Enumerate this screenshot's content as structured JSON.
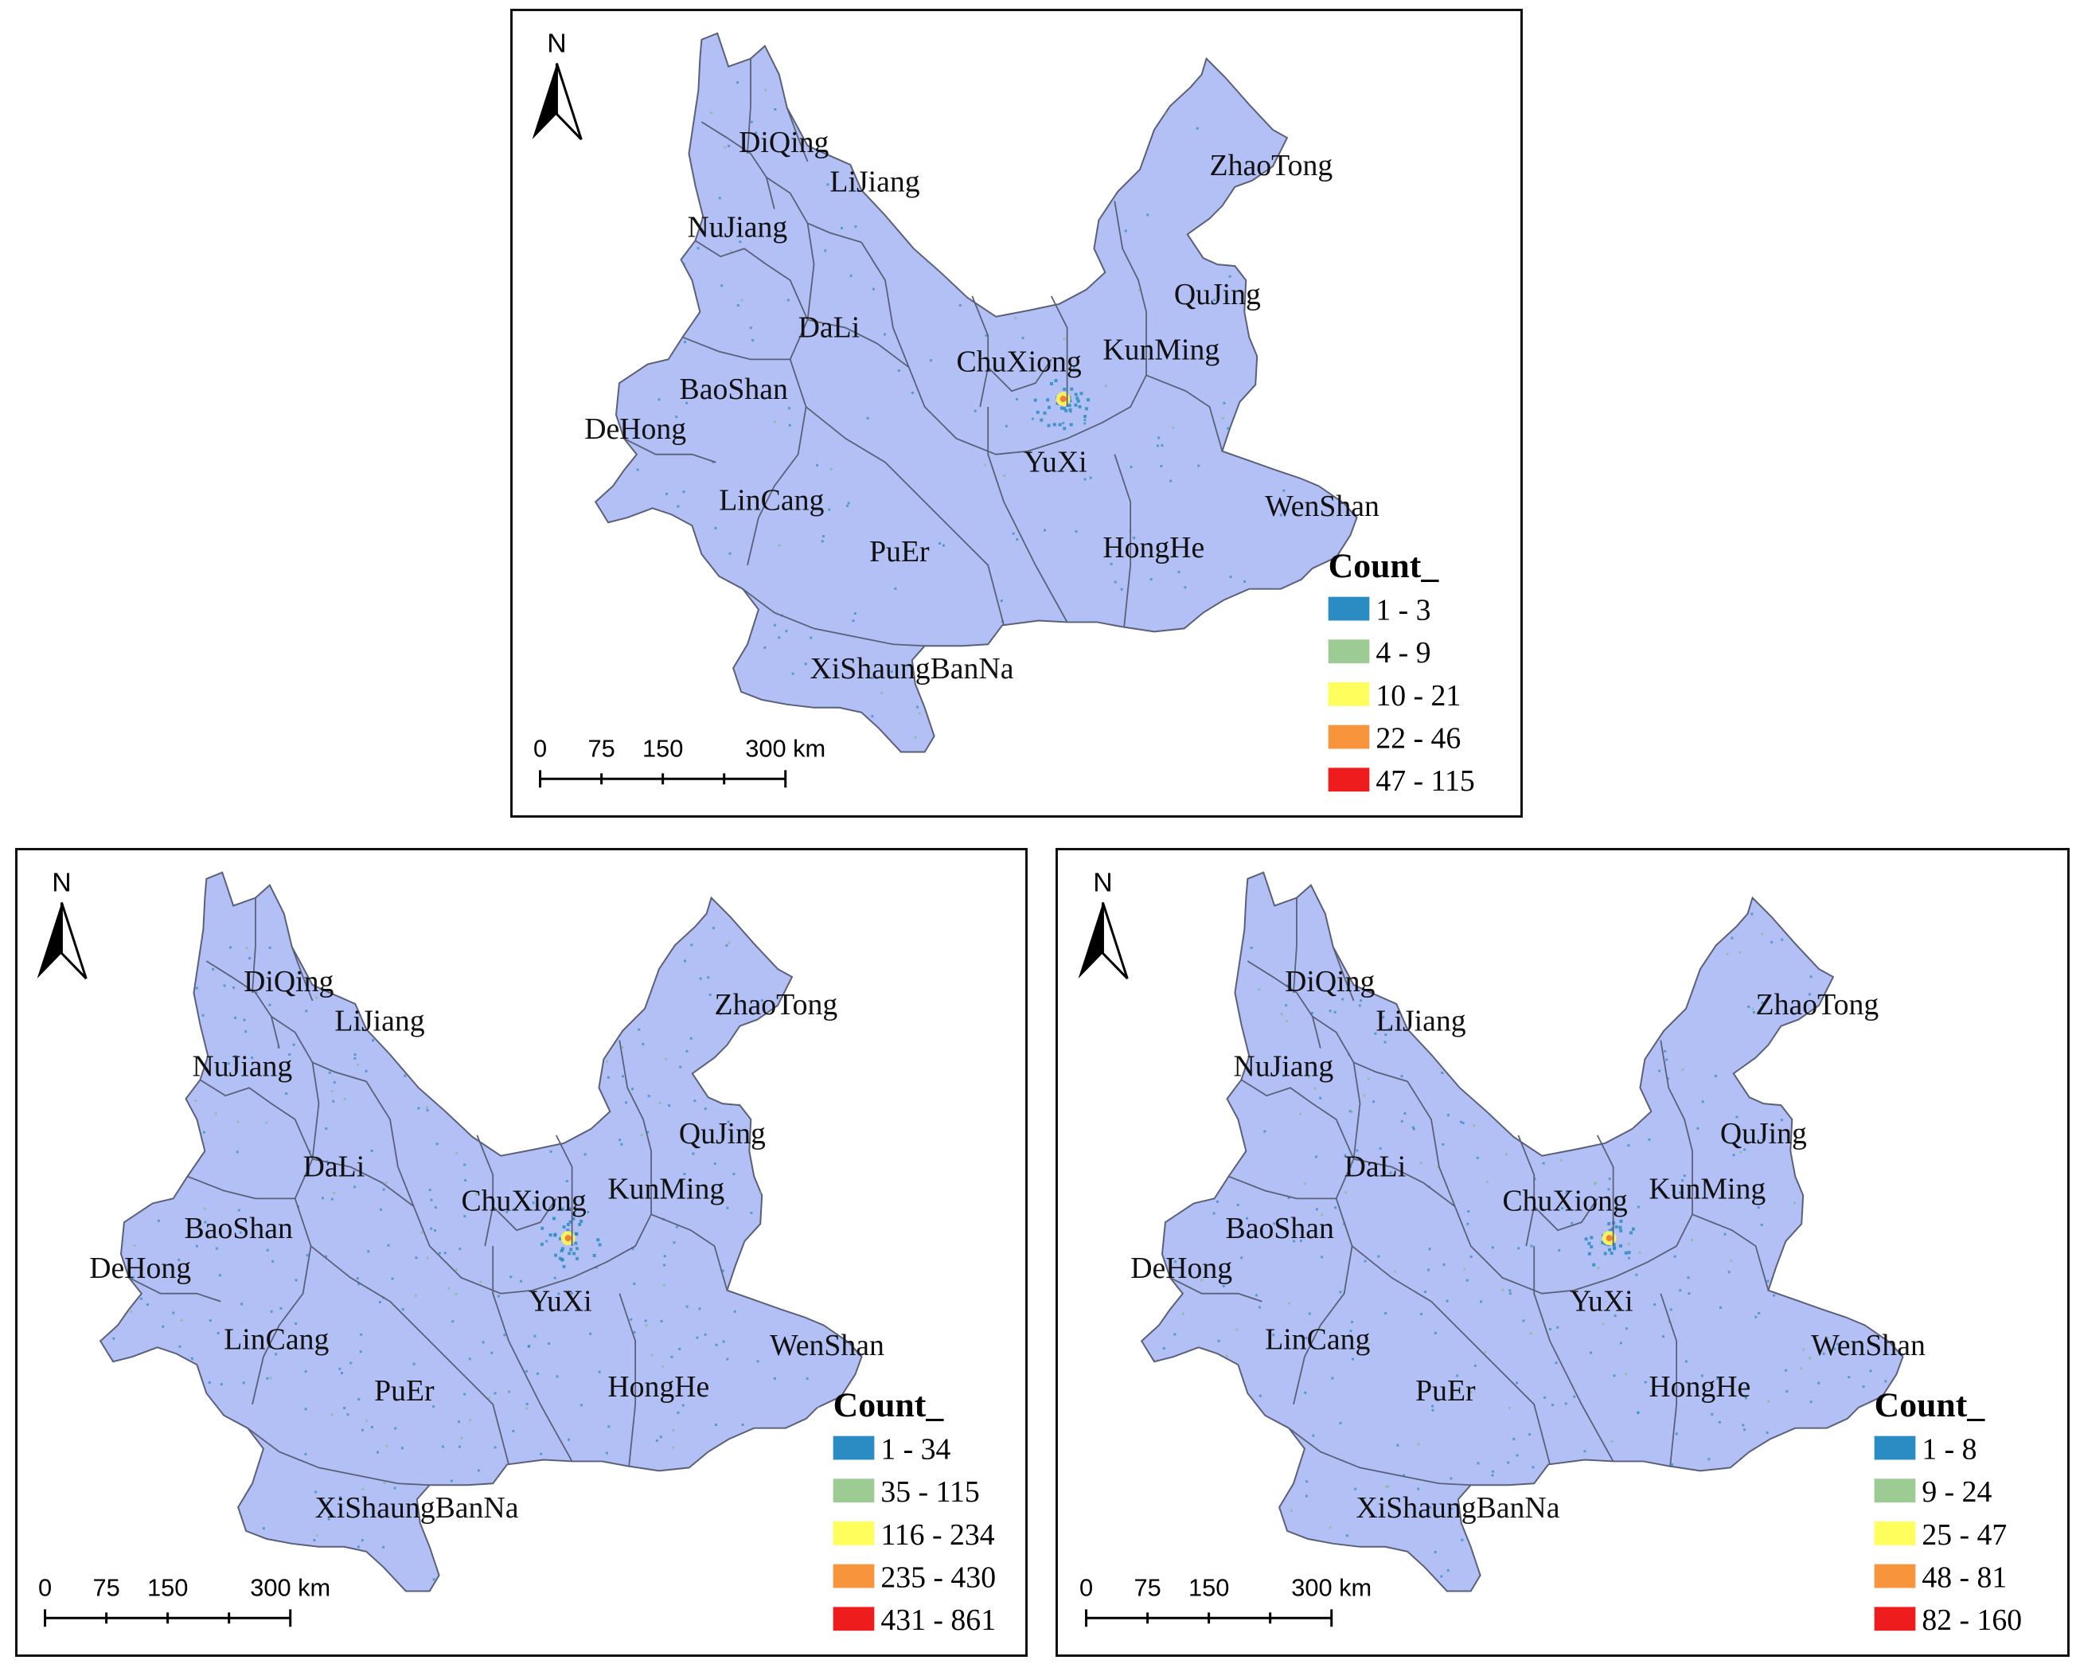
{
  "colors": {
    "province_fill": "#b3c0f5",
    "boundary": "#5a6078",
    "hotspot_low": "#2b8cbe",
    "hotspot_mid": "#f5f064",
    "hotspot_high": "#f08030"
  },
  "maps": [
    {
      "id": "top",
      "north_label": "N",
      "regions": [
        "DiQing",
        "LiJiang",
        "NuJiang",
        "DaLi",
        "ZhaoTong",
        "QuJing",
        "KunMing",
        "ChuXiong",
        "BaoShan",
        "DeHong",
        "YuXi",
        "LinCang",
        "WenShan",
        "PuEr",
        "HongHe",
        "XiShaungBanNa"
      ],
      "legend": {
        "title": "Count_",
        "items": [
          {
            "label": "1 - 3",
            "color": "#2b8cc4"
          },
          {
            "label": "4 - 9",
            "color": "#9ccb94"
          },
          {
            "label": "10 - 21",
            "color": "#fefe5c"
          },
          {
            "label": "22 - 46",
            "color": "#f8943c"
          },
          {
            "label": "47 - 115",
            "color": "#ee1c1c"
          }
        ]
      },
      "scale": {
        "ticks": [
          "0",
          "75",
          "150",
          "300 km"
        ]
      }
    },
    {
      "id": "bottom-left",
      "north_label": "N",
      "regions": [
        "DiQing",
        "LiJiang",
        "NuJiang",
        "DaLi",
        "ZhaoTong",
        "QuJing",
        "KunMing",
        "ChuXiong",
        "BaoShan",
        "DeHong",
        "YuXi",
        "LinCang",
        "WenShan",
        "PuEr",
        "HongHe",
        "XiShaungBanNa"
      ],
      "legend": {
        "title": "Count_",
        "items": [
          {
            "label": "1 - 34",
            "color": "#2b8cc4"
          },
          {
            "label": "35 - 115",
            "color": "#9ccb94"
          },
          {
            "label": "116 - 234",
            "color": "#fefe5c"
          },
          {
            "label": "235 - 430",
            "color": "#f8943c"
          },
          {
            "label": "431 - 861",
            "color": "#ee1c1c"
          }
        ]
      },
      "scale": {
        "ticks": [
          "0",
          "75",
          "150",
          "300 km"
        ]
      }
    },
    {
      "id": "bottom-right",
      "north_label": "N",
      "regions": [
        "DiQing",
        "LiJiang",
        "NuJiang",
        "DaLi",
        "ZhaoTong",
        "QuJing",
        "KunMing",
        "ChuXiong",
        "BaoShan",
        "DeHong",
        "YuXi",
        "LinCang",
        "WenShan",
        "PuEr",
        "HongHe",
        "XiShaungBanNa"
      ],
      "legend": {
        "title": "Count_",
        "items": [
          {
            "label": "1 - 8",
            "color": "#2b8cc4"
          },
          {
            "label": "9 - 24",
            "color": "#9ccb94"
          },
          {
            "label": "25 - 47",
            "color": "#fefe5c"
          },
          {
            "label": "48 - 81",
            "color": "#f8943c"
          },
          {
            "label": "82 - 160",
            "color": "#ee1c1c"
          }
        ]
      },
      "scale": {
        "ticks": [
          "0",
          "75",
          "150",
          "300 km"
        ]
      }
    }
  ]
}
